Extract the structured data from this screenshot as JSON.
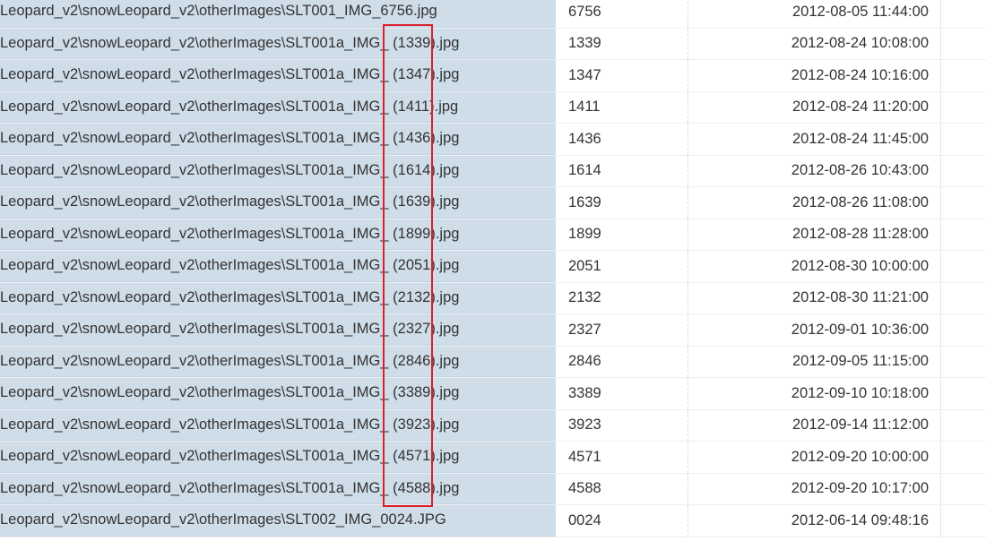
{
  "table": {
    "rows": [
      {
        "path": "Leopard_v2\\snowLeopard_v2\\otherImages\\SLT001_IMG_6756.jpg",
        "id": "6756",
        "datetime": "2012-08-05 11:44:00"
      },
      {
        "path": "Leopard_v2\\snowLeopard_v2\\otherImages\\SLT001a_IMG_ (1339).jpg",
        "id": "1339",
        "datetime": "2012-08-24 10:08:00"
      },
      {
        "path": "Leopard_v2\\snowLeopard_v2\\otherImages\\SLT001a_IMG_ (1347).jpg",
        "id": "1347",
        "datetime": "2012-08-24 10:16:00"
      },
      {
        "path": "Leopard_v2\\snowLeopard_v2\\otherImages\\SLT001a_IMG_ (1411).jpg",
        "id": "1411",
        "datetime": "2012-08-24 11:20:00"
      },
      {
        "path": "Leopard_v2\\snowLeopard_v2\\otherImages\\SLT001a_IMG_ (1436).jpg",
        "id": "1436",
        "datetime": "2012-08-24 11:45:00"
      },
      {
        "path": "Leopard_v2\\snowLeopard_v2\\otherImages\\SLT001a_IMG_ (1614).jpg",
        "id": "1614",
        "datetime": "2012-08-26 10:43:00"
      },
      {
        "path": "Leopard_v2\\snowLeopard_v2\\otherImages\\SLT001a_IMG_ (1639).jpg",
        "id": "1639",
        "datetime": "2012-08-26 11:08:00"
      },
      {
        "path": "Leopard_v2\\snowLeopard_v2\\otherImages\\SLT001a_IMG_ (1899).jpg",
        "id": "1899",
        "datetime": "2012-08-28 11:28:00"
      },
      {
        "path": "Leopard_v2\\snowLeopard_v2\\otherImages\\SLT001a_IMG_ (2051).jpg",
        "id": "2051",
        "datetime": "2012-08-30 10:00:00"
      },
      {
        "path": "Leopard_v2\\snowLeopard_v2\\otherImages\\SLT001a_IMG_ (2132).jpg",
        "id": "2132",
        "datetime": "2012-08-30 11:21:00"
      },
      {
        "path": "Leopard_v2\\snowLeopard_v2\\otherImages\\SLT001a_IMG_ (2327).jpg",
        "id": "2327",
        "datetime": "2012-09-01 10:36:00"
      },
      {
        "path": "Leopard_v2\\snowLeopard_v2\\otherImages\\SLT001a_IMG_ (2846).jpg",
        "id": "2846",
        "datetime": "2012-09-05 11:15:00"
      },
      {
        "path": "Leopard_v2\\snowLeopard_v2\\otherImages\\SLT001a_IMG_ (3389).jpg",
        "id": "3389",
        "datetime": "2012-09-10 10:18:00"
      },
      {
        "path": "Leopard_v2\\snowLeopard_v2\\otherImages\\SLT001a_IMG_ (3923).jpg",
        "id": "3923",
        "datetime": "2012-09-14 11:12:00"
      },
      {
        "path": "Leopard_v2\\snowLeopard_v2\\otherImages\\SLT001a_IMG_ (4571).jpg",
        "id": "4571",
        "datetime": "2012-09-20 10:00:00"
      },
      {
        "path": "Leopard_v2\\snowLeopard_v2\\otherImages\\SLT001a_IMG_ (4588).jpg",
        "id": "4588",
        "datetime": "2012-09-20 10:17:00"
      },
      {
        "path": "Leopard_v2\\snowLeopard_v2\\otherImages\\SLT002_IMG_0024.JPG",
        "id": "0024",
        "datetime": "2012-06-14 09:48:16"
      }
    ]
  },
  "highlight_color": "#d9202c",
  "selected_column_color": "#cfdde9"
}
